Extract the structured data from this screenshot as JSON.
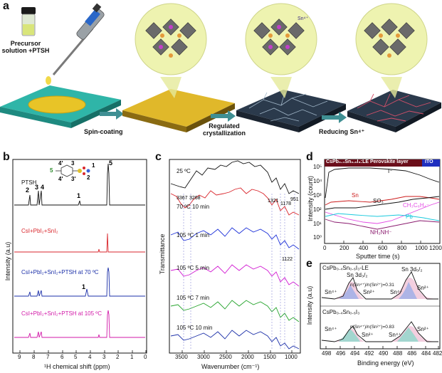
{
  "figure": {
    "panel_a": {
      "label": "a",
      "precursor_label": "Precursor\nsolution +PTSH",
      "step1": "Spin-coating",
      "step2": "Regulated\ncrystallization",
      "step3": "Reducing Sn⁴⁺",
      "sn4_tag": "Sn⁴⁺",
      "colors": {
        "substrate": "#2fb5a8",
        "film_yellow": "#e0b82a",
        "film_dark": "#2b3a4c",
        "arrow": "#3f8f93",
        "bubble": "#eef3b0"
      }
    },
    "panel_b": {
      "label": "b",
      "xlabel": "¹H chemical shift (ppm)",
      "ylabel": "Intensity (a.u)",
      "ticks": [
        "9",
        "8",
        "7",
        "6",
        "5",
        "4",
        "3",
        "2",
        "1",
        "0"
      ],
      "traces": [
        {
          "name": "PTSH",
          "color": "#111111"
        },
        {
          "name": "CsI+PbI₂+SnI₂",
          "color": "#d9262c"
        },
        {
          "name": "CsI+PbI₂+SnI₂+PTSH at 70 ºC",
          "color": "#1b2fa8"
        },
        {
          "name": "CsI+PbI₂+SnI₂+PTSH at 105 ºC",
          "color": "#d21aa8"
        }
      ],
      "peak_labels": [
        "2",
        "3",
        "4",
        "1",
        "5",
        "1"
      ],
      "struct_labels": [
        "4'",
        "3",
        "3'",
        "5",
        "1",
        "2",
        "4'",
        "3'"
      ]
    },
    "panel_c": {
      "label": "c",
      "xlabel": "Wavenumber (cm⁻¹)",
      "ylabel": "Transmittance",
      "ticks": [
        "3500",
        "3000",
        "2500",
        "2000",
        "1500",
        "1000"
      ],
      "traces": [
        {
          "name": "25 ºC",
          "color": "#111111"
        },
        {
          "name": "70 ºC  10 min",
          "color": "#d9262c"
        },
        {
          "name": "105 ºC  1 min",
          "color": "#1b2fd8"
        },
        {
          "name": "105 ºC  5 min",
          "color": "#d21ad2"
        },
        {
          "name": "105 ºC  7 min",
          "color": "#23a32a"
        },
        {
          "name": "105 ºC  10 min",
          "color": "#1b2fa8"
        }
      ],
      "band_labels": [
        "3367",
        "3268",
        "1321",
        "1178",
        "951",
        "1122"
      ]
    },
    "panel_d": {
      "label": "d",
      "header_left": "CsPb₀.₄Sn₀.₆I₃:LE Perovskite layer",
      "header_right": "ITO",
      "ylabel": "Intensity (count)",
      "xlabel": "Sputter time (s)",
      "xticks": [
        "0",
        "200",
        "400",
        "600",
        "800",
        "1000",
        "1200"
      ],
      "yticks": [
        "10⁰",
        "10¹",
        "10²",
        "10³",
        "10⁴",
        "10⁵"
      ],
      "species": [
        "I⁻",
        "Sn",
        "SO₃",
        "CH₃C₆H₄⁻",
        "Pb",
        "NH₂NH⁻"
      ],
      "colors": {
        "I": "#111111",
        "Sn": "#cc1a1a",
        "SO3": "#111111",
        "CH3C6H4": "#e34be3",
        "Pb": "#19c9dd",
        "NH2NH": "#8a1a6e",
        "header": "#6b0e1a",
        "ito": "#1f2fbf"
      }
    },
    "panel_e": {
      "label": "e",
      "xlabel": "Binding energy (eV)",
      "ylabel": "Intensity (a.u)",
      "xticks": [
        "498",
        "496",
        "494",
        "492",
        "490",
        "488",
        "486",
        "484",
        "482"
      ],
      "top": {
        "title": "CsPb₀.₄Sn₀.₆I₃-LE",
        "ratio": "n(Sn⁴⁺)/n(Sn²⁺)=0.31",
        "left_peak": "Sn 3d₃/₂",
        "right_peak": "Sn 3d₅/₂"
      },
      "bottom": {
        "title": "CsPb₀.₄Sn₀.₆I₃",
        "ratio": "n(Sn⁴⁺)/n(Sn²⁺)=0.83"
      },
      "labels": {
        "sn4": "Sn⁴⁺",
        "sn2": "Sn²⁺"
      }
    }
  }
}
